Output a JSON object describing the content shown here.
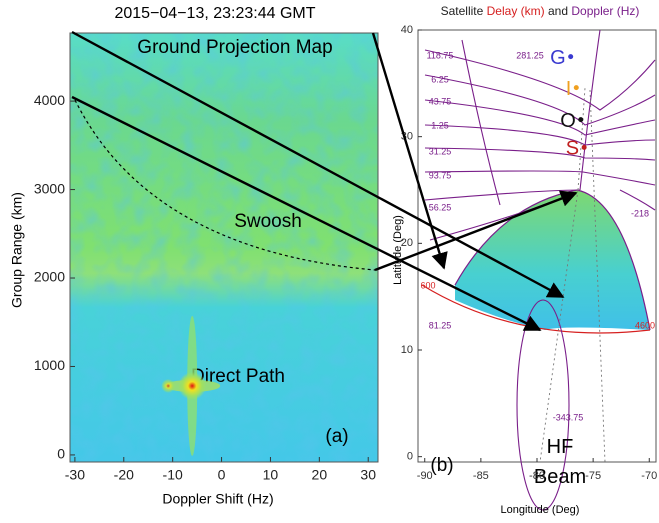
{
  "chart_data": [
    {
      "type": "heatmap",
      "title": "2015−04−13, 23:23:44 GMT",
      "xlabel": "Doppler Shift (Hz)",
      "ylabel": "Group Range (km)",
      "xlim": [
        -31,
        32
      ],
      "ylim": [
        -80,
        4770
      ],
      "xticks": [
        -30,
        -20,
        -10,
        0,
        10,
        20,
        30
      ],
      "yticks": [
        0,
        1000,
        2000,
        3000,
        4000
      ],
      "peak": {
        "x": -6,
        "y": 780
      },
      "annotations": [
        "Ground Projection Map",
        "Swoosh",
        "Direct Path",
        "(a)"
      ]
    },
    {
      "type": "map",
      "title": [
        "Satellite",
        "Delay (km)",
        "and",
        "Doppler (Hz)"
      ],
      "title_colors": [
        "#222",
        "#d62020",
        "#222",
        "#7a1f8a"
      ],
      "xlabel": "Longitude (Deg)",
      "ylabel": "Latitude (Deg)",
      "xlim": [
        -90.6,
        -69.4
      ],
      "ylim": [
        -0.5,
        40
      ],
      "xticks": [
        -90,
        -85,
        -80,
        -75,
        -70
      ],
      "yticks": [
        0,
        10,
        20,
        30,
        40
      ],
      "markers": [
        {
          "label": "G",
          "color": "#3a3ad0",
          "lon": -77.0,
          "lat": 37.5
        },
        {
          "label": "I",
          "color": "#f0a020",
          "lon": -76.5,
          "lat": 34.6
        },
        {
          "label": "O",
          "color": "#111111",
          "lon": -76.1,
          "lat": 31.6
        },
        {
          "label": "S",
          "color": "#c02020",
          "lon": -75.8,
          "lat": 29.0
        }
      ],
      "doppler_labels": [
        118.75,
        281.25,
        6.25,
        43.75,
        1.25,
        31.25,
        93.75,
        56.25,
        81.25,
        -343.75,
        -218
      ],
      "delay_labels": [
        600,
        4600
      ],
      "annotations": [
        "HF Beam",
        "(b)"
      ]
    }
  ]
}
